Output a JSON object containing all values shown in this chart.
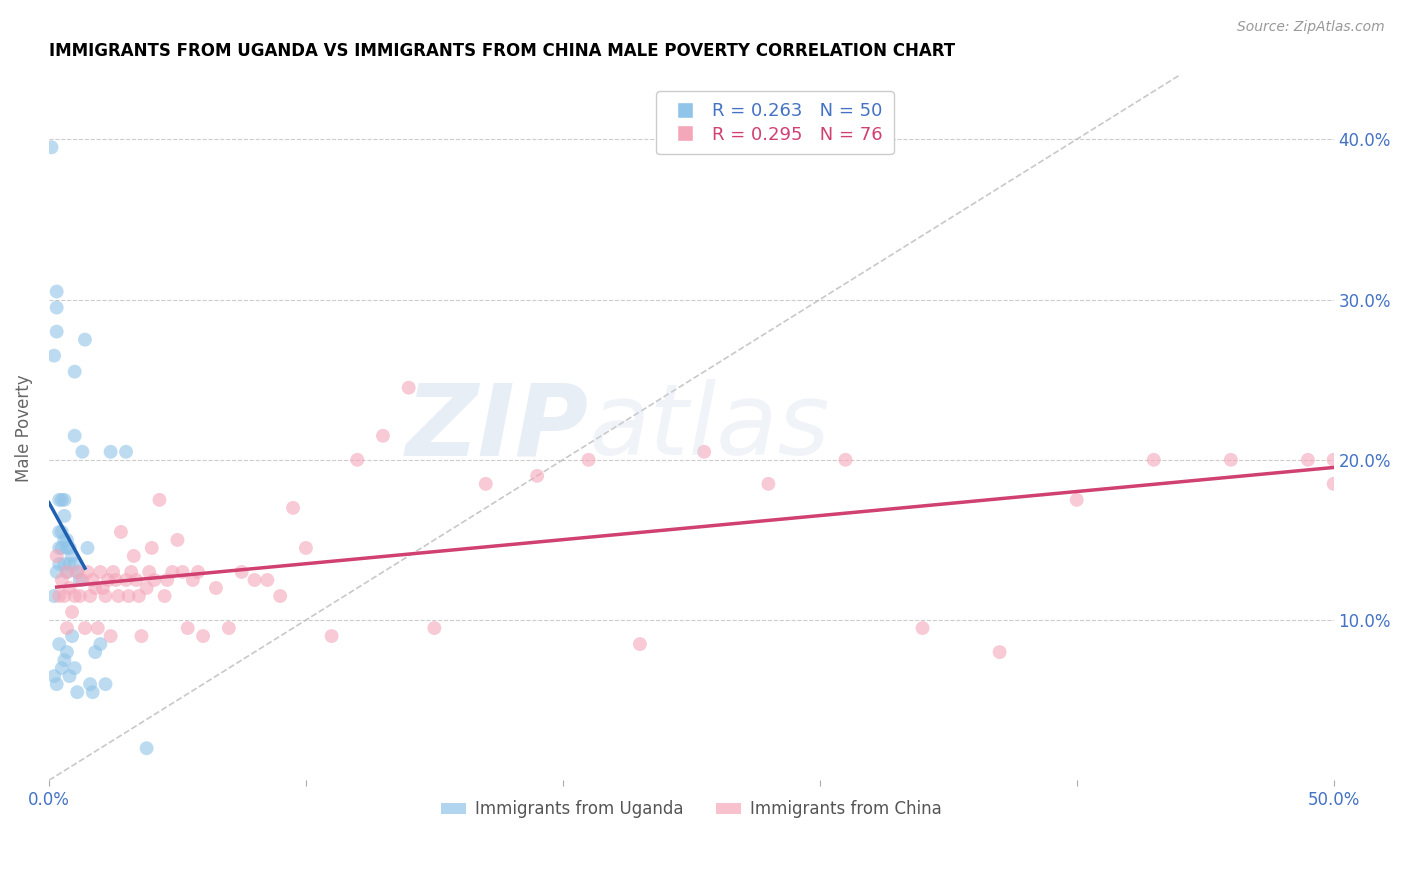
{
  "title": "IMMIGRANTS FROM UGANDA VS IMMIGRANTS FROM CHINA MALE POVERTY CORRELATION CHART",
  "source": "Source: ZipAtlas.com",
  "ylabel": "Male Poverty",
  "xlim": [
    0.0,
    0.5
  ],
  "ylim": [
    0.0,
    0.44
  ],
  "color_uganda": "#90c4e8",
  "color_china": "#f4a7b9",
  "line_color_uganda": "#2060b0",
  "line_color_china": "#d04070",
  "watermark_zip": "ZIP",
  "watermark_atlas": "atlas",
  "uganda_x": [
    0.001,
    0.002,
    0.002,
    0.002,
    0.003,
    0.003,
    0.003,
    0.003,
    0.003,
    0.004,
    0.004,
    0.004,
    0.004,
    0.004,
    0.005,
    0.005,
    0.005,
    0.005,
    0.006,
    0.006,
    0.006,
    0.006,
    0.006,
    0.007,
    0.007,
    0.007,
    0.007,
    0.008,
    0.008,
    0.008,
    0.009,
    0.009,
    0.01,
    0.01,
    0.01,
    0.01,
    0.011,
    0.011,
    0.012,
    0.013,
    0.014,
    0.015,
    0.016,
    0.017,
    0.018,
    0.02,
    0.022,
    0.024,
    0.03,
    0.038
  ],
  "uganda_y": [
    0.395,
    0.265,
    0.115,
    0.065,
    0.305,
    0.295,
    0.28,
    0.13,
    0.06,
    0.175,
    0.155,
    0.145,
    0.135,
    0.085,
    0.175,
    0.155,
    0.145,
    0.07,
    0.175,
    0.165,
    0.15,
    0.135,
    0.075,
    0.15,
    0.145,
    0.13,
    0.08,
    0.145,
    0.135,
    0.065,
    0.14,
    0.09,
    0.255,
    0.215,
    0.135,
    0.07,
    0.13,
    0.055,
    0.125,
    0.205,
    0.275,
    0.145,
    0.06,
    0.055,
    0.08,
    0.085,
    0.06,
    0.205,
    0.205,
    0.02
  ],
  "china_x": [
    0.003,
    0.004,
    0.005,
    0.006,
    0.007,
    0.007,
    0.008,
    0.009,
    0.01,
    0.011,
    0.012,
    0.013,
    0.014,
    0.015,
    0.016,
    0.017,
    0.018,
    0.019,
    0.02,
    0.021,
    0.022,
    0.023,
    0.024,
    0.025,
    0.026,
    0.027,
    0.028,
    0.03,
    0.031,
    0.032,
    0.033,
    0.034,
    0.035,
    0.036,
    0.038,
    0.039,
    0.04,
    0.041,
    0.043,
    0.045,
    0.046,
    0.048,
    0.05,
    0.052,
    0.054,
    0.056,
    0.058,
    0.06,
    0.065,
    0.07,
    0.075,
    0.08,
    0.085,
    0.09,
    0.095,
    0.1,
    0.11,
    0.12,
    0.13,
    0.14,
    0.15,
    0.17,
    0.19,
    0.21,
    0.23,
    0.255,
    0.28,
    0.31,
    0.34,
    0.37,
    0.4,
    0.43,
    0.46,
    0.49,
    0.5,
    0.5
  ],
  "china_y": [
    0.14,
    0.115,
    0.125,
    0.115,
    0.13,
    0.095,
    0.12,
    0.105,
    0.115,
    0.13,
    0.115,
    0.125,
    0.095,
    0.13,
    0.115,
    0.125,
    0.12,
    0.095,
    0.13,
    0.12,
    0.115,
    0.125,
    0.09,
    0.13,
    0.125,
    0.115,
    0.155,
    0.125,
    0.115,
    0.13,
    0.14,
    0.125,
    0.115,
    0.09,
    0.12,
    0.13,
    0.145,
    0.125,
    0.175,
    0.115,
    0.125,
    0.13,
    0.15,
    0.13,
    0.095,
    0.125,
    0.13,
    0.09,
    0.12,
    0.095,
    0.13,
    0.125,
    0.125,
    0.115,
    0.17,
    0.145,
    0.09,
    0.2,
    0.215,
    0.245,
    0.095,
    0.185,
    0.19,
    0.2,
    0.085,
    0.205,
    0.185,
    0.2,
    0.095,
    0.08,
    0.175,
    0.2,
    0.2,
    0.2,
    0.185,
    0.2
  ]
}
